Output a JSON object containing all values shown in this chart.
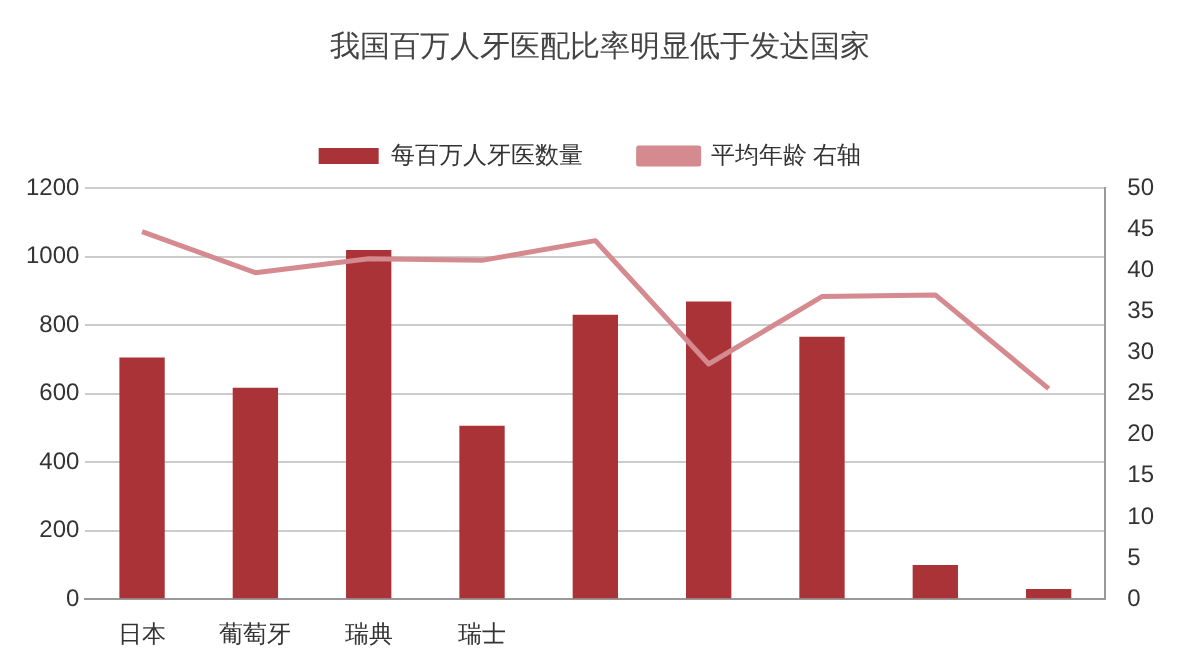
{
  "chart_data": {
    "type": "bar",
    "title": "我国百万人牙医配比率明显低于发达国家",
    "categories": [
      "日本",
      "葡萄牙",
      "瑞典",
      "瑞士",
      null,
      null,
      null,
      null,
      null
    ],
    "series": [
      {
        "name": "每百万人牙医数量",
        "color": "#a93337",
        "values": [
          705,
          617,
          1019,
          506,
          830,
          869,
          766,
          100,
          30
        ]
      },
      {
        "name": "平均年龄 右轴",
        "type": "line",
        "axis": "y2",
        "color": "#d48a8e",
        "values": [
          44.7,
          39.7,
          41.4,
          41.2,
          43.6,
          28.6,
          36.8,
          37,
          25.6
        ]
      }
    ],
    "ylim": [
      0,
      1200
    ],
    "yticks": [
      0,
      200,
      400,
      600,
      800,
      1000,
      1200
    ],
    "y2lim": [
      0,
      50
    ],
    "y2ticks": [
      0,
      5,
      10,
      15,
      20,
      25,
      30,
      35,
      40,
      45,
      50
    ],
    "grid": "y",
    "legend": "top",
    "marker": "none"
  }
}
